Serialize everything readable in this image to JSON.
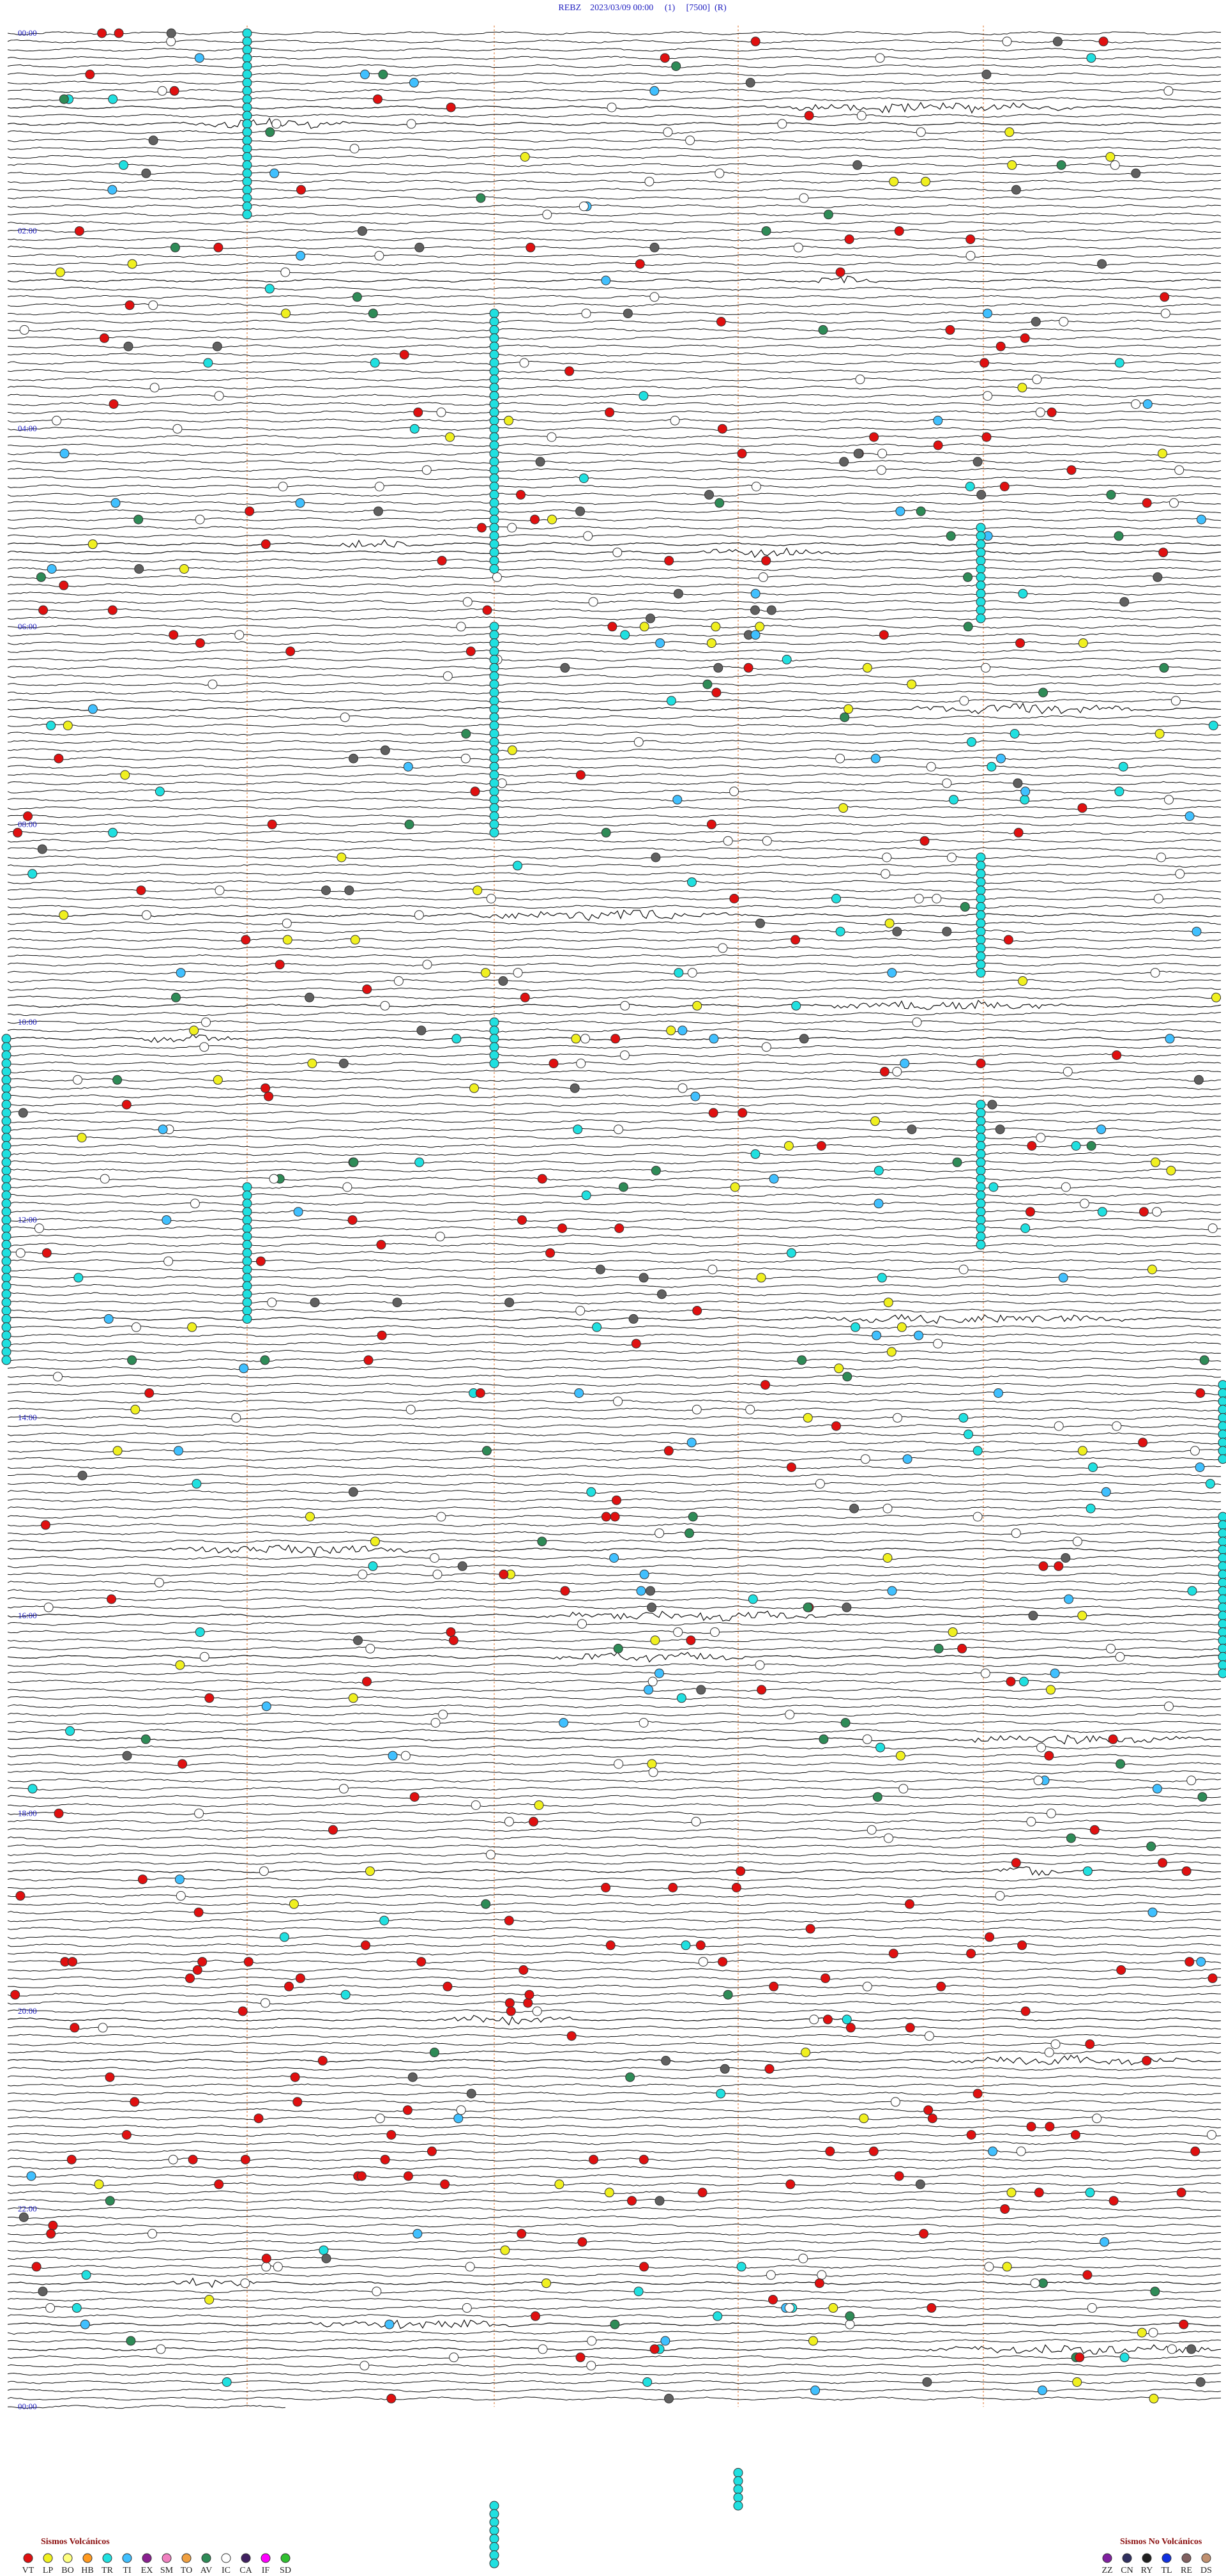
{
  "header": {
    "station": "REBZ",
    "datetime": "2023/03/09 00:00",
    "channel": "(1)",
    "scale": "[7500]",
    "mode": "(R)"
  },
  "hour_labels": [
    "00:00",
    "02:00",
    "04:00",
    "06:00",
    "08:00",
    "10:00",
    "12:00",
    "14:00",
    "16:00",
    "18:00",
    "20:00",
    "22:00",
    "00:00"
  ],
  "legend_volcanic": {
    "title": "Sismos Volcánicos",
    "items": [
      {
        "code": "VT",
        "color": "#e01010"
      },
      {
        "code": "LP",
        "color": "#f0f020"
      },
      {
        "code": "BQ",
        "color": "#ffff80"
      },
      {
        "code": "HB",
        "color": "#ff9a20"
      },
      {
        "code": "TR",
        "color": "#20e0e0"
      },
      {
        "code": "TI",
        "color": "#40c0ff"
      },
      {
        "code": "EX",
        "color": "#8a2090"
      },
      {
        "code": "SM",
        "color": "#f080c0"
      },
      {
        "code": "TO",
        "color": "#f0a040"
      },
      {
        "code": "AV",
        "color": "#2e8b57"
      },
      {
        "code": "IC",
        "color": "#ffffff"
      },
      {
        "code": "CA",
        "color": "#402060"
      },
      {
        "code": "IF",
        "color": "#ff00ff"
      },
      {
        "code": "SD",
        "color": "#30c030"
      }
    ]
  },
  "legend_nonvolcanic": {
    "title": "Sismos No Volcánicos",
    "items": [
      {
        "code": "ZZ",
        "color": "#8020a0"
      },
      {
        "code": "CN",
        "color": "#303060"
      },
      {
        "code": "RY",
        "color": "#202020"
      },
      {
        "code": "TL",
        "color": "#1030e0"
      },
      {
        "code": "RE",
        "color": "#806060"
      },
      {
        "code": "DS",
        "color": "#c09070"
      }
    ]
  }
}
